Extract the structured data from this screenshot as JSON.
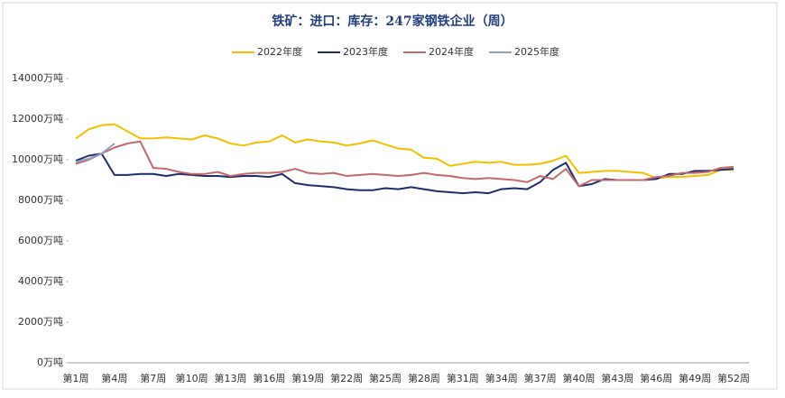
{
  "chart_data": {
    "type": "line",
    "title": "铁矿：进口：库存：247家钢铁企业（周）",
    "categories": [
      "第1周",
      null,
      null,
      "第4周",
      null,
      null,
      "第7周",
      null,
      null,
      "第10周",
      null,
      null,
      "第13周",
      null,
      null,
      "第16周",
      null,
      null,
      "第19周",
      null,
      null,
      "第22周",
      null,
      null,
      "第25周",
      null,
      null,
      "第28周",
      null,
      null,
      "第31周",
      null,
      null,
      "第34周",
      null,
      null,
      "第37周",
      null,
      null,
      "第40周",
      null,
      null,
      "第43周",
      null,
      null,
      "第46周",
      null,
      null,
      "第49周",
      null,
      null,
      "第52周"
    ],
    "series": [
      {
        "name": "2022年度",
        "color": "#f5c000",
        "values": [
          11050,
          11500,
          11700,
          11750,
          11400,
          11050,
          11050,
          11100,
          11050,
          11000,
          11200,
          11050,
          10800,
          10700,
          10850,
          10900,
          11200,
          10850,
          11000,
          10900,
          10850,
          10700,
          10800,
          10950,
          10750,
          10550,
          10500,
          10100,
          10050,
          9700,
          9800,
          9900,
          9850,
          9900,
          9750,
          9750,
          9800,
          9950,
          10200,
          9350,
          9400,
          9450,
          9450,
          9400,
          9350,
          9100,
          9150,
          9150,
          9200,
          9250,
          9500,
          9500
        ]
      },
      {
        "name": "2023年度",
        "color": "#1f2d6b",
        "values": [
          9950,
          10200,
          10300,
          9250,
          9250,
          9300,
          9300,
          9200,
          9300,
          9250,
          9200,
          9200,
          9150,
          9200,
          9200,
          9150,
          9300,
          8850,
          8750,
          8700,
          8650,
          8550,
          8500,
          8500,
          8600,
          8550,
          8650,
          8550,
          8450,
          8400,
          8350,
          8400,
          8350,
          8550,
          8600,
          8550,
          8900,
          9500,
          9850,
          8700,
          8800,
          9050,
          9000,
          9000,
          9000,
          9050,
          9300,
          9300,
          9450,
          9450,
          9500,
          9550
        ]
      },
      {
        "name": "2024年度",
        "color": "#c46a6a",
        "values": [
          9800,
          10000,
          10300,
          10600,
          10800,
          10900,
          9600,
          9550,
          9400,
          9300,
          9300,
          9400,
          9200,
          9300,
          9350,
          9350,
          9400,
          9550,
          9350,
          9300,
          9350,
          9200,
          9250,
          9300,
          9250,
          9200,
          9250,
          9350,
          9250,
          9200,
          9100,
          9050,
          9100,
          9050,
          9000,
          8900,
          9200,
          9050,
          9550,
          8700,
          9000,
          9000,
          9000,
          9000,
          9000,
          9150,
          9200,
          9350,
          9350,
          9400,
          9600,
          9650
        ]
      },
      {
        "name": "2025年度",
        "color": "#8fa3c8",
        "values": [
          9900,
          10050,
          10300,
          10800,
          null,
          null,
          null,
          null,
          null,
          null,
          null,
          null,
          null,
          null,
          null,
          null,
          null,
          null,
          null,
          null,
          null,
          null,
          null,
          null,
          null,
          null,
          null,
          null,
          null,
          null,
          null,
          null,
          null,
          null,
          null,
          null,
          null,
          null,
          null,
          null,
          null,
          null,
          null,
          null,
          null,
          null,
          null,
          null,
          null,
          null,
          null,
          null
        ]
      }
    ],
    "ylim": [
      0,
      14000
    ],
    "yticks": [
      {
        "value": 0,
        "label": "0万吨"
      },
      {
        "value": 2000,
        "label": "2000万吨"
      },
      {
        "value": 4000,
        "label": "4000万吨"
      },
      {
        "value": 6000,
        "label": "6000万吨"
      },
      {
        "value": 8000,
        "label": "8000万吨"
      },
      {
        "value": 10000,
        "label": "10000万吨"
      },
      {
        "value": 12000,
        "label": "12000万吨"
      },
      {
        "value": 14000,
        "label": "14000万吨"
      }
    ],
    "legend": "top"
  }
}
